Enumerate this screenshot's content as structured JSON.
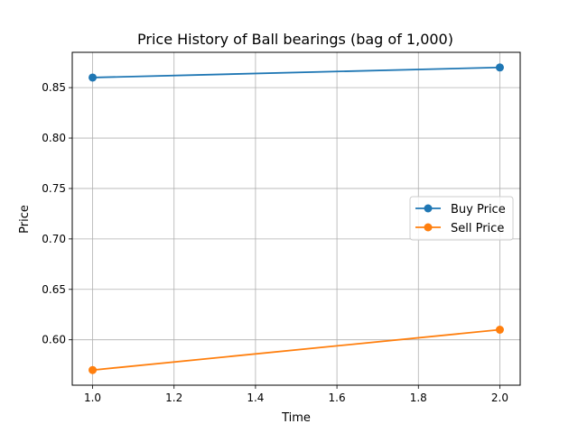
{
  "chart_data": {
    "type": "line",
    "title": "Price History of Ball bearings (bag of 1,000)",
    "xlabel": "Time",
    "ylabel": "Price",
    "xlim": [
      0.95,
      2.05
    ],
    "ylim": [
      0.555,
      0.885
    ],
    "xticks": [
      1.0,
      1.2,
      1.4,
      1.6,
      1.8,
      2.0
    ],
    "xtick_labels": [
      "1.0",
      "1.2",
      "1.4",
      "1.6",
      "1.8",
      "2.0"
    ],
    "yticks": [
      0.6,
      0.65,
      0.7,
      0.75,
      0.8,
      0.85
    ],
    "ytick_labels": [
      "0.60",
      "0.65",
      "0.70",
      "0.75",
      "0.80",
      "0.85"
    ],
    "grid": true,
    "legend_position": "center-right",
    "series": [
      {
        "name": "Buy Price",
        "color": "#1f77b4",
        "marker": "circle",
        "x": [
          1,
          2
        ],
        "y": [
          0.86,
          0.87
        ]
      },
      {
        "name": "Sell Price",
        "color": "#ff7f0e",
        "marker": "circle",
        "x": [
          1,
          2
        ],
        "y": [
          0.57,
          0.61
        ]
      }
    ]
  }
}
